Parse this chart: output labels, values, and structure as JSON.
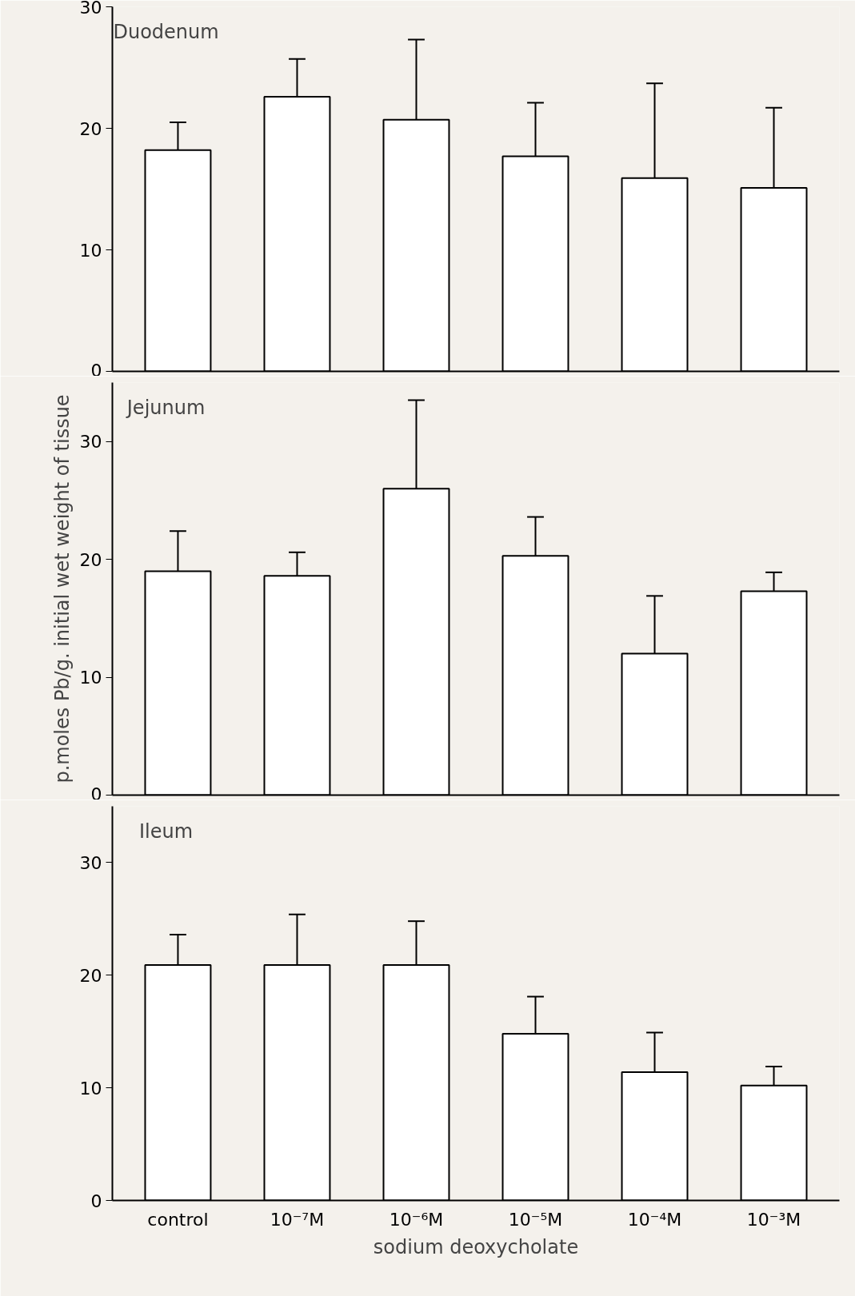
{
  "chart_data": [
    {
      "type": "bar",
      "title": "Duodenum",
      "categories": [
        null,
        null,
        null,
        null,
        null,
        null
      ],
      "values": [
        18.2,
        22.6,
        20.7,
        17.7,
        15.9,
        15.1
      ],
      "errors": [
        [
          18.2,
          20.5
        ],
        [
          22.6,
          25.7
        ],
        [
          20.7,
          27.3
        ],
        [
          17.7,
          22.1
        ],
        [
          15.9,
          23.7
        ],
        [
          15.1,
          21.7
        ]
      ],
      "color": "#ffffff",
      "ylim": [
        0,
        30
      ],
      "yticks": [
        0,
        10,
        20,
        30
      ],
      "tick_labels": "y",
      "grid": false
    },
    {
      "type": "bar",
      "title": "Jejunum",
      "ylabel": "p.moles Pb/g. initial wet weight of tissue",
      "categories": [
        null,
        null,
        null,
        null,
        null,
        null
      ],
      "values": [
        19.0,
        18.6,
        26.0,
        20.3,
        12.0,
        17.3
      ],
      "errors": [
        [
          19.0,
          22.4
        ],
        [
          18.6,
          20.6
        ],
        [
          26.0,
          33.5
        ],
        [
          20.3,
          23.6
        ],
        [
          12.0,
          16.9
        ],
        [
          17.3,
          18.9
        ]
      ],
      "color": "#ffffff",
      "ylim": [
        0,
        35
      ],
      "yticks": [
        0,
        10,
        20,
        30
      ],
      "tick_labels": "y",
      "grid": false
    },
    {
      "type": "bar",
      "title": "Ileum",
      "xlabel": "sodium deoxycholate",
      "categories": [
        "control",
        "10⁻⁷M",
        "10⁻⁶M",
        "10⁻⁵M",
        "10⁻⁴M",
        "10⁻³M"
      ],
      "values": [
        20.9,
        20.9,
        20.9,
        14.8,
        11.4,
        10.2
      ],
      "errors": [
        [
          20.9,
          23.6
        ],
        [
          20.9,
          25.4
        ],
        [
          20.9,
          24.8
        ],
        [
          14.8,
          18.1
        ],
        [
          11.4,
          14.9
        ],
        [
          10.2,
          11.9
        ]
      ],
      "color": "#ffffff",
      "ylim": [
        0,
        35
      ],
      "yticks": [
        0,
        10,
        20,
        30
      ],
      "grid": false
    }
  ]
}
